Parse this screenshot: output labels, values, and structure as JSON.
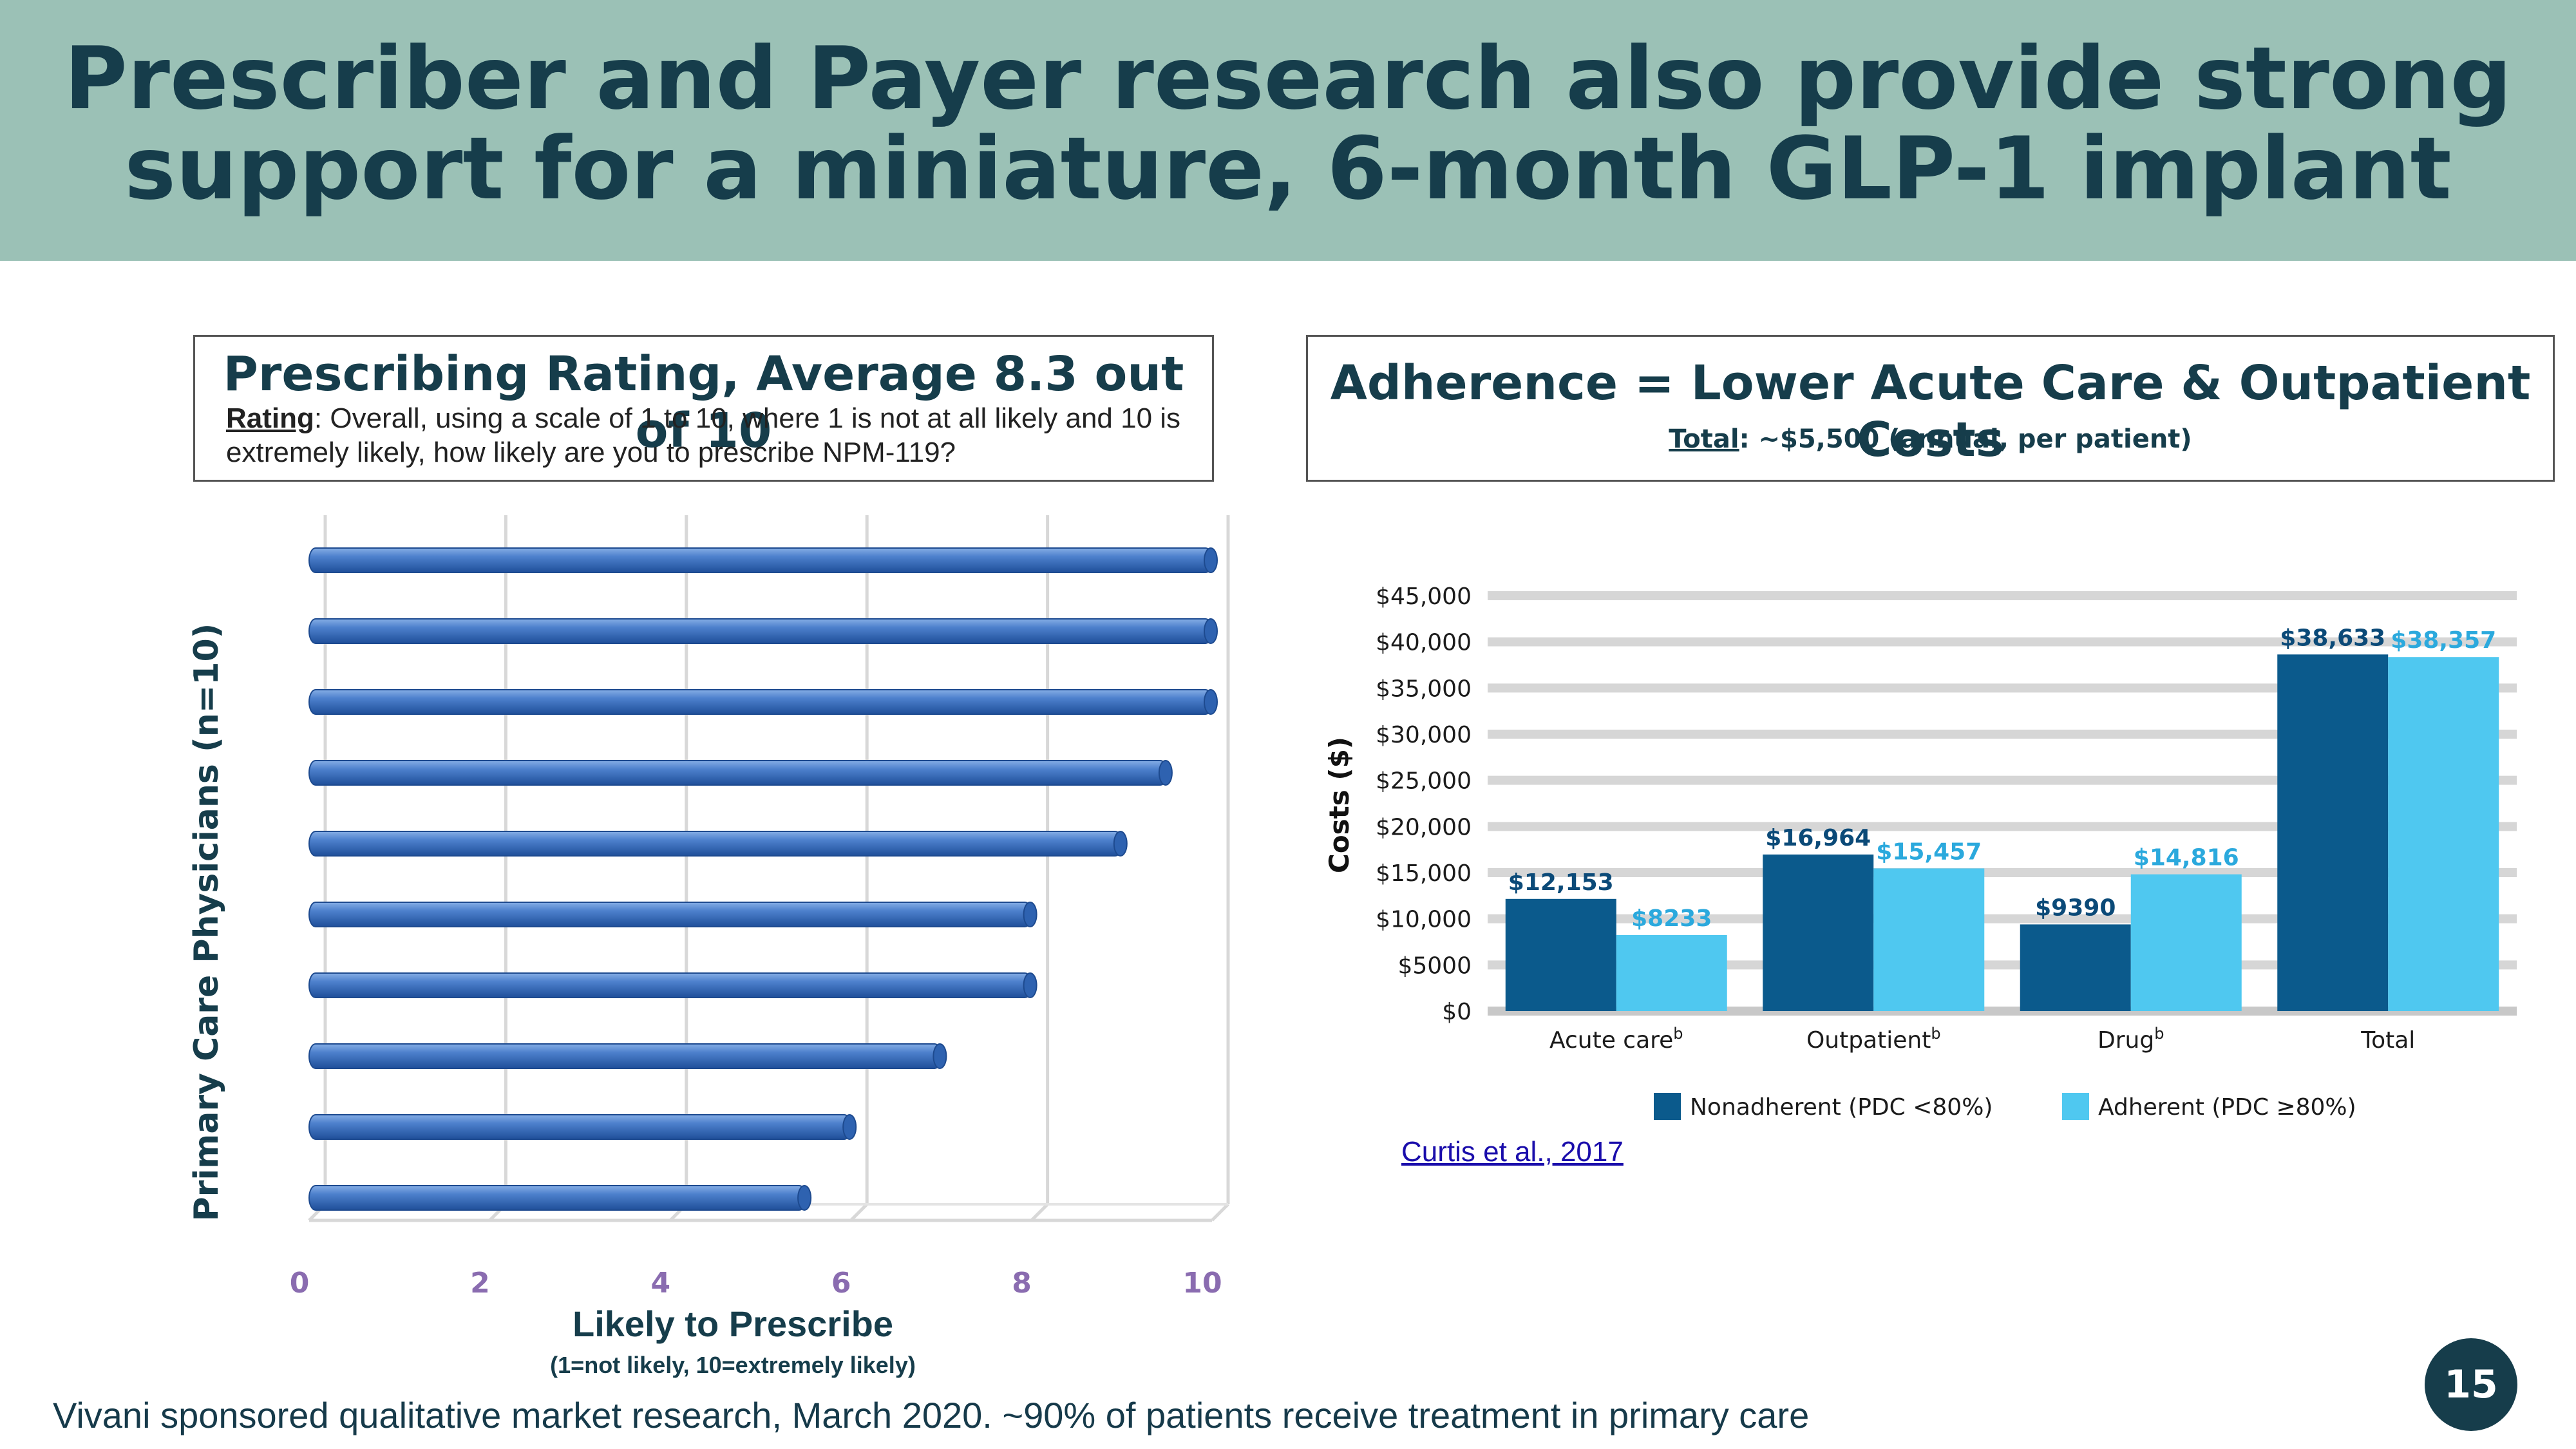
{
  "slide": {
    "title": "Prescriber and Payer research also provide strong support for a miniature, 6-month GLP-1 implant",
    "page_number": "15",
    "footer": "Vivani sponsored qualitative market research, March 2020. ~90% of patients receive treatment in primary care",
    "colors": {
      "banner": "#9bc1b6",
      "title": "#163d4b",
      "bar_blue": "#3f74c2",
      "nonadherent": "#0b5a8c",
      "adherent": "#4fc8f0"
    }
  },
  "left_panel": {
    "heading": "Prescribing Rating, Average 8.3 out of 10",
    "rating_label": "Rating",
    "rating_text": ": Overall, using a scale of 1 to 10, where 1 is not at all likely and 10 is extremely likely, how likely are you to prescribe NPM-119?"
  },
  "right_panel": {
    "heading": "Adherence = Lower Acute Care & Outpatient Costs",
    "total_label": "Total",
    "total_text": ": ~$5,500 (annual, per patient)",
    "source": "Curtis et al., 2017"
  },
  "chart_data": [
    {
      "type": "bar",
      "orientation": "horizontal",
      "values": [
        10,
        10,
        10,
        9.5,
        9,
        8,
        8,
        7,
        6,
        5.5
      ],
      "xlim": [
        0,
        10
      ],
      "xticks": [
        "0",
        "2",
        "4",
        "6",
        "8",
        "10"
      ],
      "xlabel": "Likely to Prescribe",
      "xlabel_sub": "(1=not likely, 10=extremely likely)",
      "ylabel": "Primary Care Physicians (n=10)",
      "grid": true
    },
    {
      "type": "bar",
      "categories": [
        "Acute care",
        "Outpatient",
        "Drug",
        "Total"
      ],
      "category_superscripts": [
        "b",
        "b",
        "b",
        ""
      ],
      "series": [
        {
          "name": "Nonadherent (PDC <80%)",
          "values": [
            12153,
            16964,
            9390,
            38633
          ],
          "labels": [
            "$12,153",
            "$16,964",
            "$9390",
            "$38,633"
          ]
        },
        {
          "name": "Adherent (PDC ≥80%)",
          "values": [
            8233,
            15457,
            14816,
            38357
          ],
          "labels": [
            "$8233",
            "$15,457",
            "$14,816",
            "$38,357"
          ]
        }
      ],
      "ylabel": "Costs ($)",
      "ylim": [
        0,
        45000
      ],
      "yticks": [
        "$0",
        "$5000",
        "$10,000",
        "$15,000",
        "$20,000",
        "$25,000",
        "$30,000",
        "$35,000",
        "$40,000",
        "$45,000"
      ],
      "grid": true,
      "legend": "bottom"
    }
  ]
}
